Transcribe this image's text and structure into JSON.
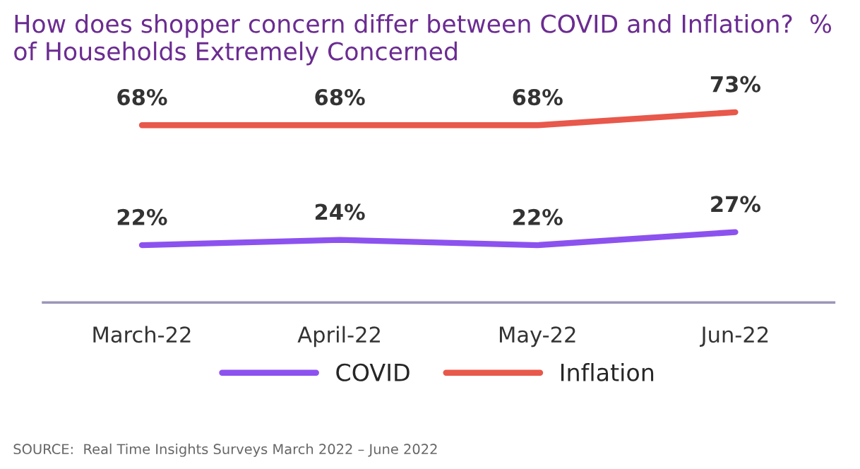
{
  "chart_data": {
    "type": "line",
    "title": "How does shopper concern differ between COVID and Inflation?  % of Households Extremely Concerned",
    "categories": [
      "March-22",
      "April-22",
      "May-22",
      "Jun-22"
    ],
    "series": [
      {
        "name": "COVID",
        "color": "#8c52ef",
        "values": [
          22,
          24,
          22,
          27
        ],
        "value_labels": [
          "22%",
          "24%",
          "22%",
          "27%"
        ]
      },
      {
        "name": "Inflation",
        "color": "#e8584b",
        "values": [
          68,
          68,
          68,
          73
        ],
        "value_labels": [
          "68%",
          "68%",
          "68%",
          "73%"
        ]
      }
    ],
    "legend": "bottom",
    "grid": false,
    "marker": "none",
    "line_style": "solid",
    "annotations": [
      "SOURCE:  Real Time Insights Surveys March 2022 – June 2022"
    ]
  }
}
